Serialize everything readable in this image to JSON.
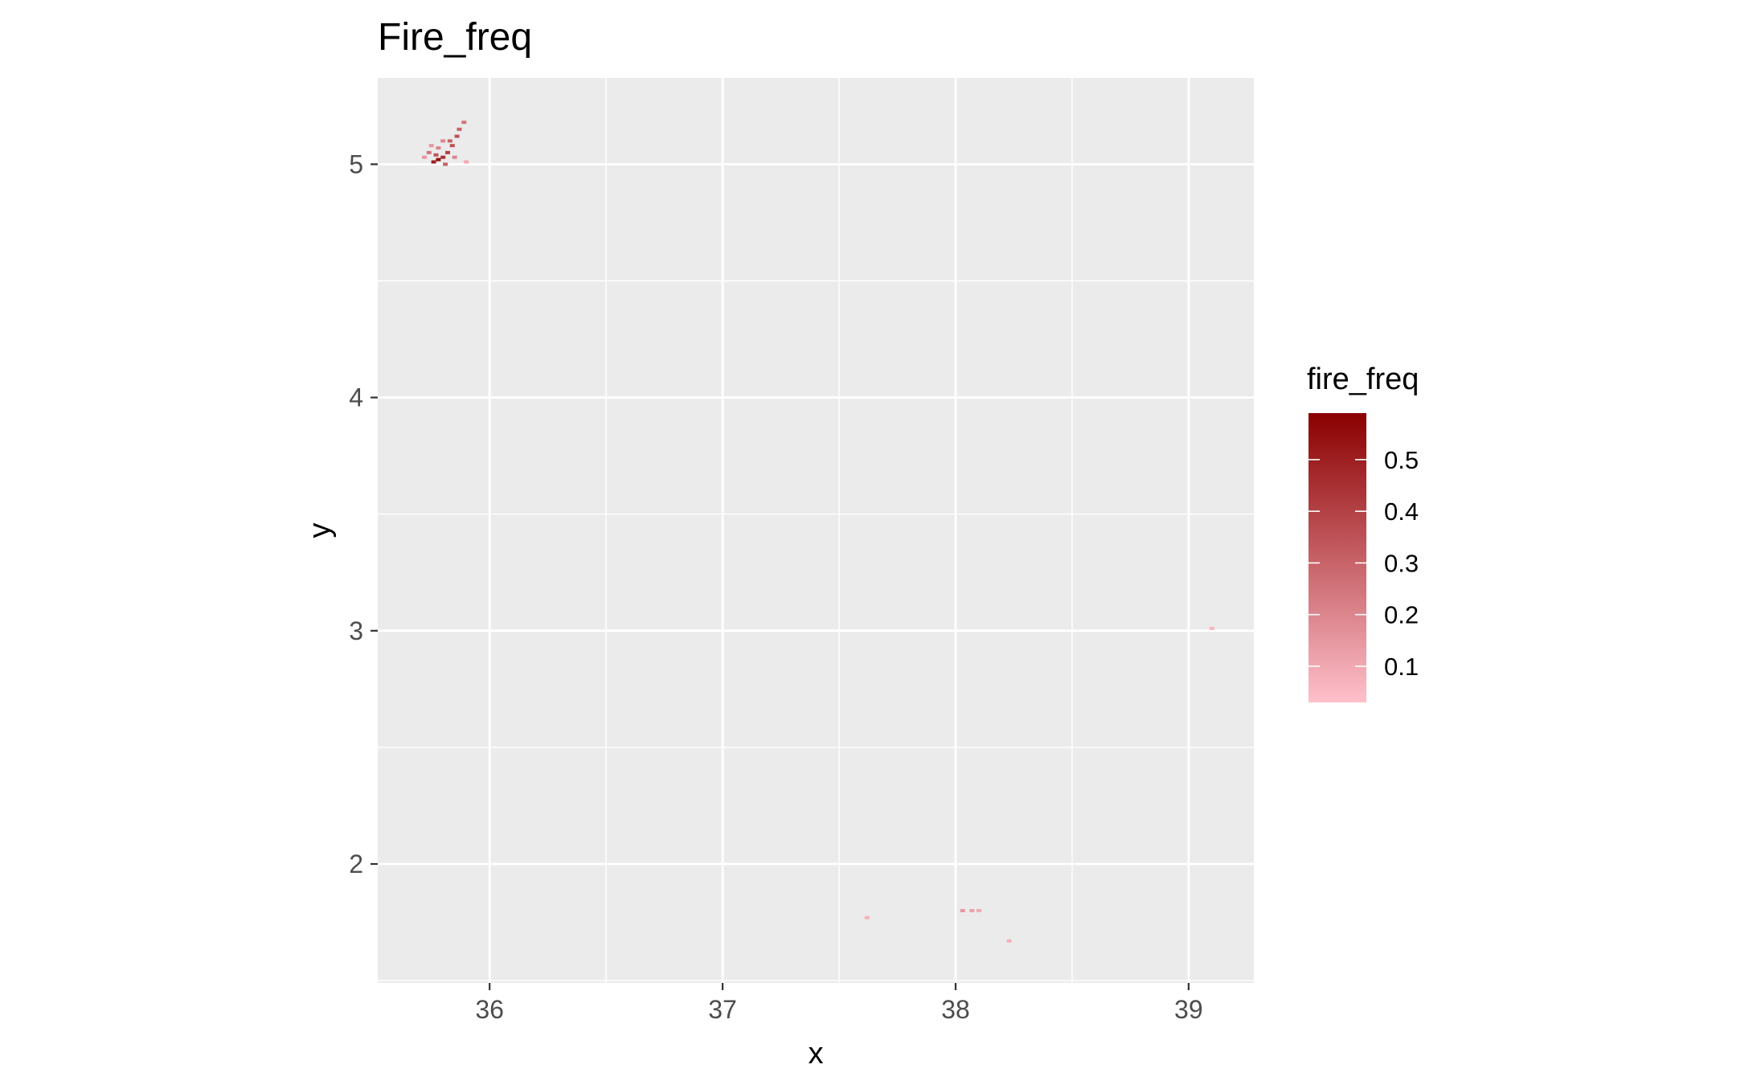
{
  "chart_data": {
    "type": "heatmap",
    "title": "Fire_freq",
    "xlabel": "x",
    "ylabel": "y",
    "xlim": [
      35.52,
      39.28
    ],
    "ylim": [
      1.49,
      5.37
    ],
    "x_ticks": [
      36,
      37,
      38,
      39
    ],
    "y_ticks": [
      2,
      3,
      4,
      5
    ],
    "x_tick_labels": [
      "36",
      "37",
      "38",
      "39"
    ],
    "y_tick_labels": [
      "2",
      "3",
      "4",
      "5"
    ],
    "grid": true,
    "panel_background": "#ebebeb",
    "grid_color": "#ffffff",
    "legend": {
      "title": "fire_freq",
      "placement": "right",
      "low_color": "#ffc0cb",
      "high_color": "#8b0000",
      "range": [
        0.03,
        0.59
      ],
      "breaks": [
        0.1,
        0.2,
        0.3,
        0.4,
        0.5
      ],
      "labels": [
        "0.1",
        "0.2",
        "0.3",
        "0.4",
        "0.5"
      ]
    },
    "cells": [
      {
        "x": 35.78,
        "y": 5.02,
        "value": 0.55
      },
      {
        "x": 35.76,
        "y": 5.01,
        "value": 0.5
      },
      {
        "x": 35.8,
        "y": 5.03,
        "value": 0.45
      },
      {
        "x": 35.77,
        "y": 5.04,
        "value": 0.35
      },
      {
        "x": 35.74,
        "y": 5.05,
        "value": 0.25
      },
      {
        "x": 35.82,
        "y": 5.05,
        "value": 0.4
      },
      {
        "x": 35.84,
        "y": 5.08,
        "value": 0.35
      },
      {
        "x": 35.83,
        "y": 5.1,
        "value": 0.3
      },
      {
        "x": 35.86,
        "y": 5.12,
        "value": 0.35
      },
      {
        "x": 35.87,
        "y": 5.15,
        "value": 0.3
      },
      {
        "x": 35.89,
        "y": 5.18,
        "value": 0.25
      },
      {
        "x": 35.8,
        "y": 5.1,
        "value": 0.2
      },
      {
        "x": 35.78,
        "y": 5.07,
        "value": 0.2
      },
      {
        "x": 35.72,
        "y": 5.03,
        "value": 0.15
      },
      {
        "x": 35.85,
        "y": 5.03,
        "value": 0.2
      },
      {
        "x": 35.9,
        "y": 5.01,
        "value": 0.1
      },
      {
        "x": 35.81,
        "y": 5.0,
        "value": 0.3
      },
      {
        "x": 35.75,
        "y": 5.08,
        "value": 0.15
      },
      {
        "x": 38.03,
        "y": 1.8,
        "value": 0.15
      },
      {
        "x": 38.07,
        "y": 1.8,
        "value": 0.12
      },
      {
        "x": 38.1,
        "y": 1.8,
        "value": 0.1
      },
      {
        "x": 37.62,
        "y": 1.77,
        "value": 0.08
      },
      {
        "x": 38.23,
        "y": 1.67,
        "value": 0.08
      },
      {
        "x": 39.1,
        "y": 3.01,
        "value": 0.06
      }
    ]
  }
}
